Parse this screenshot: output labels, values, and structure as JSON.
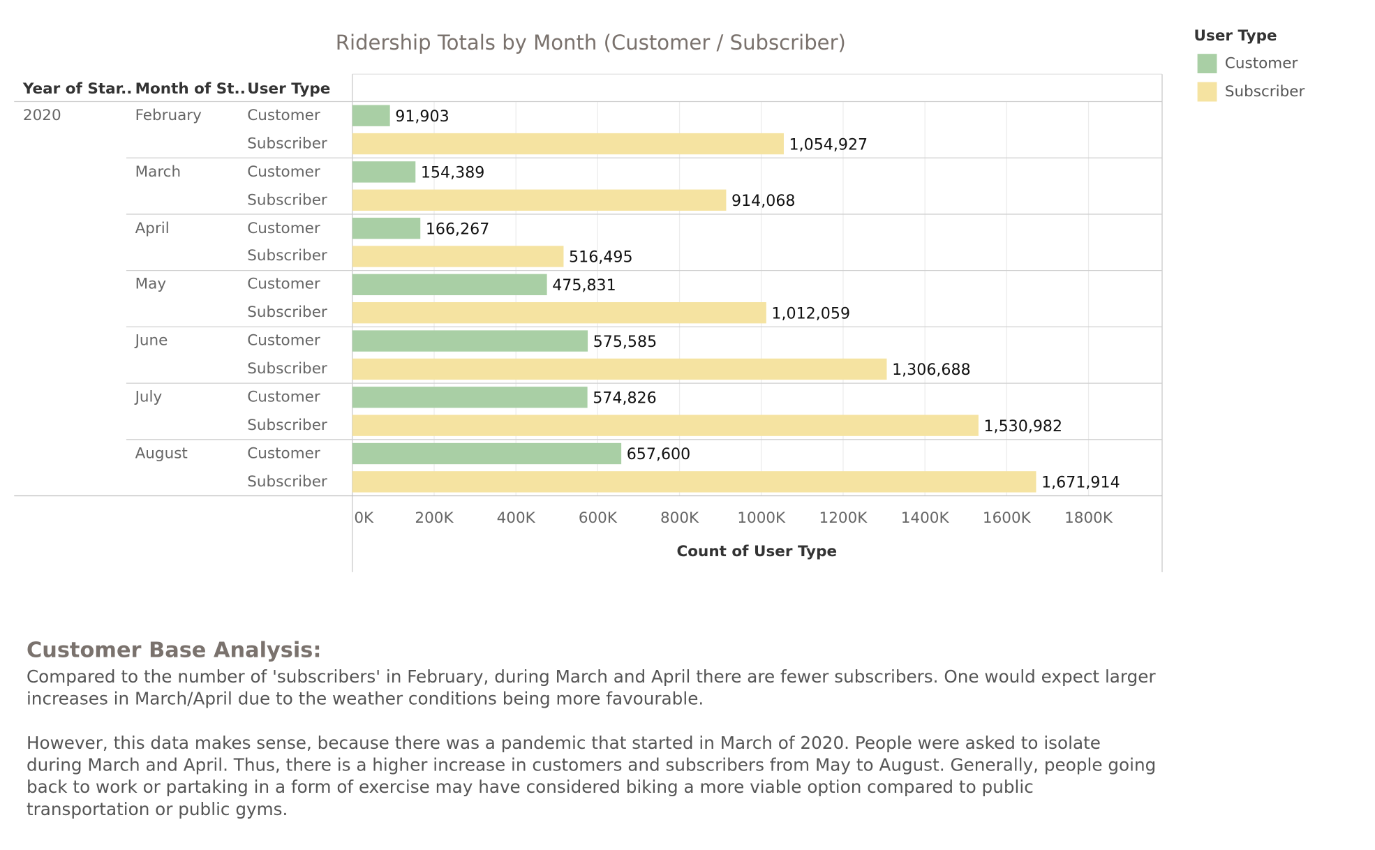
{
  "chart_data": {
    "type": "bar",
    "orientation": "horizontal",
    "title": "Ridership Totals by Month (Customer / Subscriber)",
    "row_headers": [
      "Year of Star..",
      "Month of St..",
      "User Type"
    ],
    "year": "2020",
    "months": [
      "February",
      "March",
      "April",
      "May",
      "June",
      "July",
      "August"
    ],
    "rows": [
      {
        "month": "February",
        "user_type": "Customer",
        "value": 91903,
        "label": "91,903"
      },
      {
        "month": "February",
        "user_type": "Subscriber",
        "value": 1054927,
        "label": "1,054,927"
      },
      {
        "month": "March",
        "user_type": "Customer",
        "value": 154389,
        "label": "154,389"
      },
      {
        "month": "March",
        "user_type": "Subscriber",
        "value": 914068,
        "label": "914,068"
      },
      {
        "month": "April",
        "user_type": "Customer",
        "value": 166267,
        "label": "166,267"
      },
      {
        "month": "April",
        "user_type": "Subscriber",
        "value": 516495,
        "label": "516,495"
      },
      {
        "month": "May",
        "user_type": "Customer",
        "value": 475831,
        "label": "475,831"
      },
      {
        "month": "May",
        "user_type": "Subscriber",
        "value": 1012059,
        "label": "1,012,059"
      },
      {
        "month": "June",
        "user_type": "Customer",
        "value": 575585,
        "label": "575,585"
      },
      {
        "month": "June",
        "user_type": "Subscriber",
        "value": 1306688,
        "label": "1,306,688"
      },
      {
        "month": "July",
        "user_type": "Customer",
        "value": 574826,
        "label": "574,826"
      },
      {
        "month": "July",
        "user_type": "Subscriber",
        "value": 1530982,
        "label": "1,530,982"
      },
      {
        "month": "August",
        "user_type": "Customer",
        "value": 657600,
        "label": "657,600"
      },
      {
        "month": "August",
        "user_type": "Subscriber",
        "value": 1671914,
        "label": "1,671,914"
      }
    ],
    "x_ticks": [
      {
        "value": 0,
        "label": "0K"
      },
      {
        "value": 200000,
        "label": "200K"
      },
      {
        "value": 400000,
        "label": "400K"
      },
      {
        "value": 600000,
        "label": "600K"
      },
      {
        "value": 800000,
        "label": "800K"
      },
      {
        "value": 1000000,
        "label": "1000K"
      },
      {
        "value": 1200000,
        "label": "1200K"
      },
      {
        "value": 1400000,
        "label": "1400K"
      },
      {
        "value": 1600000,
        "label": "1600K"
      },
      {
        "value": 1800000,
        "label": "1800K"
      }
    ],
    "xlim": [
      0,
      1980000
    ],
    "xlabel": "Count of User Type",
    "grid": true,
    "legend": {
      "title": "User Type",
      "placement": "top-right",
      "items": [
        {
          "name": "Customer",
          "color": "#a9cfa5"
        },
        {
          "name": "Subscriber",
          "color": "#f5e3a1"
        }
      ]
    }
  },
  "analysis": {
    "heading": "Customer Base Analysis:",
    "paragraph1": "Compared to the number of 'subscribers' in February, during March and April there are fewer subscribers. One would expect larger increases in March/April due to the weather conditions being more favourable.",
    "paragraph2": "However, this data makes sense, because there was a pandemic that started in March of 2020. People were asked to isolate during March and April. Thus, there is a higher increase in customers and subscribers from May to August. Generally, people going back to work or partaking in a form of exercise may have considered biking a more viable option compared to public transportation or public gyms."
  }
}
